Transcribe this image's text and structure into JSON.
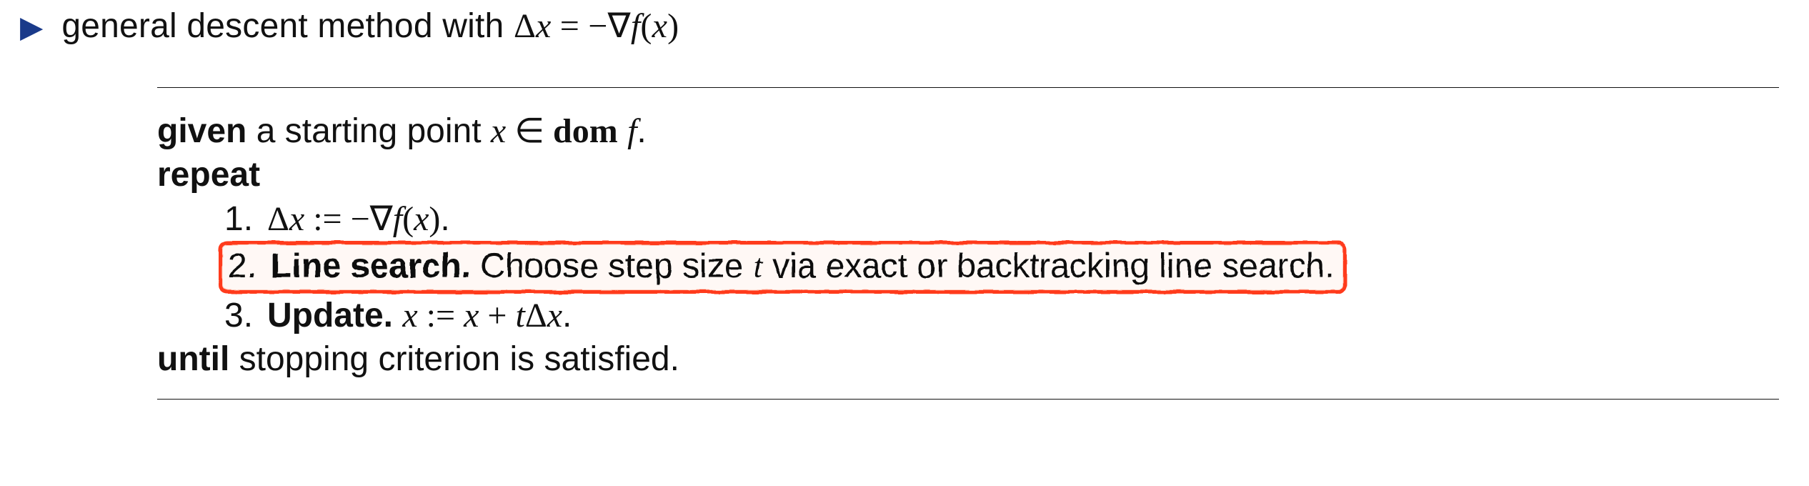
{
  "colors": {
    "bullet": "#1a3a8a",
    "text": "#111111",
    "highlight_border": "#ff3b1f",
    "highlight_fill": "rgba(255,80,40,0.04)",
    "rule": "#111111",
    "background": "#ffffff"
  },
  "typography": {
    "sans_family": "Helvetica Neue, Helvetica, Arial, sans-serif",
    "serif_family": "Times New Roman, Times, serif",
    "base_fontsize_pt": 36,
    "line_height": 1.28
  },
  "bullet": {
    "lead": "general descent method with ",
    "eq_lhs_delta": "Δ",
    "eq_lhs_x": "x",
    "eq_eq": " = ",
    "eq_rhs_minus": "−",
    "eq_rhs_nabla": "∇",
    "eq_rhs_f": "f",
    "eq_rhs_open": "(",
    "eq_rhs_x": "x",
    "eq_rhs_close": ")"
  },
  "algo": {
    "given_kw": "given",
    "given_text1": " a starting point ",
    "given_x": "x",
    "given_in": " ∈ ",
    "given_dom": "dom",
    "given_sp": " ",
    "given_f": "f",
    "given_period": ".",
    "repeat_kw": "repeat",
    "until_kw": "until",
    "until_text": " stopping criterion is satisfied.",
    "steps": {
      "s1": {
        "num": "1. ",
        "dx_delta": "Δ",
        "dx_x": "x",
        "assign": " := ",
        "minus": "−",
        "nabla": "∇",
        "f": "f",
        "open": "(",
        "x": "x",
        "close": ")",
        "period": "."
      },
      "s2": {
        "num": "2. ",
        "title": "Line search.",
        "text1": " Choose step size ",
        "t": "t",
        "text2": " via exact or backtracking line search."
      },
      "s3": {
        "num": "3. ",
        "title": "Update.",
        "sp": " ",
        "x1": "x",
        "assign": " := ",
        "x2": "x",
        "plus": " + ",
        "t": "t",
        "delta": "Δ",
        "x3": "x",
        "period": "."
      }
    }
  }
}
